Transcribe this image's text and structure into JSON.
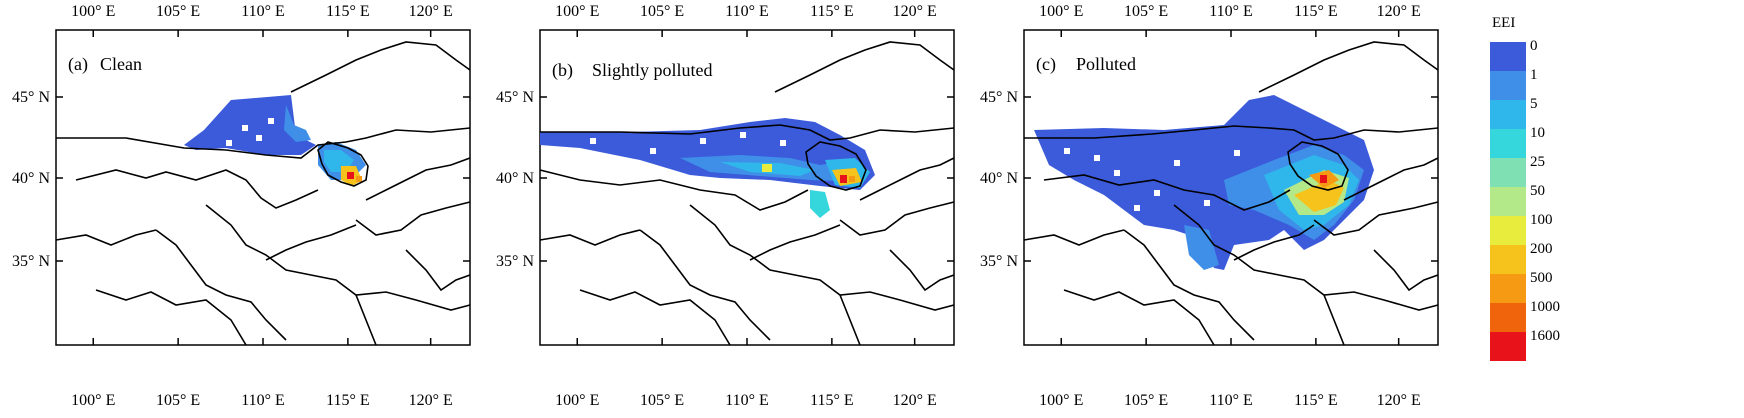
{
  "panels": [
    {
      "id": "clean",
      "tag": "(a)",
      "label": "Clean"
    },
    {
      "id": "slightly",
      "tag": "(b)",
      "label": "Slightly polluted"
    },
    {
      "id": "polluted",
      "tag": "(c)",
      "label": "Polluted"
    }
  ],
  "axes": {
    "lon_ticks": [
      "100° E",
      "105° E",
      "110° E",
      "115° E",
      "120° E"
    ],
    "lat_ticks": [
      "45° N",
      "40° N",
      "35° N"
    ]
  },
  "legend": {
    "title": "EEI",
    "levels": [
      "0",
      "1",
      "5",
      "10",
      "25",
      "50",
      "100",
      "200",
      "500",
      "1000",
      "1600"
    ],
    "colors": [
      "#3b5bdb",
      "#3f8ee8",
      "#2fb6ea",
      "#35d6dc",
      "#7fe0b4",
      "#b4e98a",
      "#e8ec3c",
      "#f6c21c",
      "#f59a12",
      "#f0640c",
      "#e8121a"
    ]
  },
  "ocean_color": "#ffffff"
}
